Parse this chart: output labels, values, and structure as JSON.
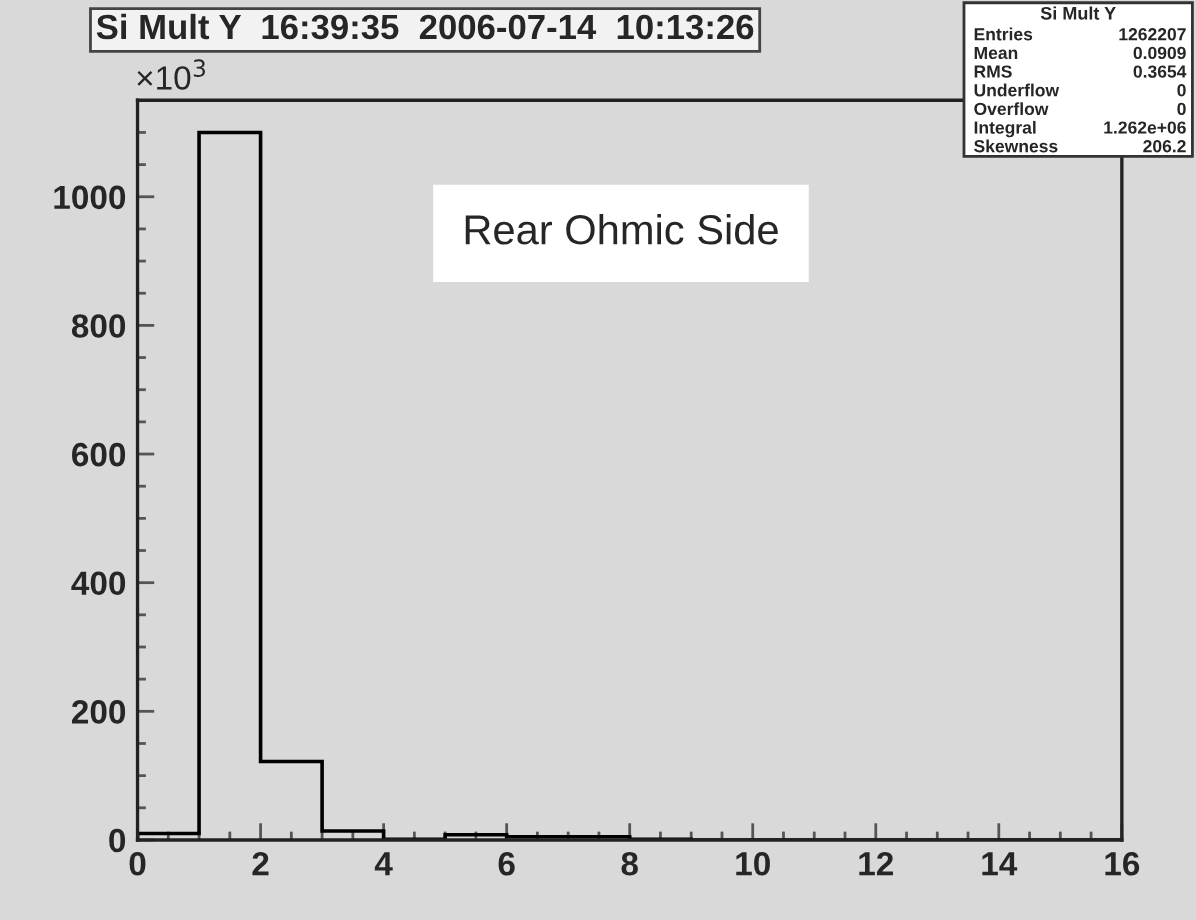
{
  "chart_data": {
    "type": "histogram",
    "title": "Si Mult Y  16:39:35  2006-07-14  10:13:26",
    "bins": [
      0,
      1,
      2,
      3,
      4,
      5,
      6,
      7,
      8,
      9,
      10,
      11,
      12,
      13,
      14,
      15,
      16
    ],
    "series": [
      {
        "color": "#000000",
        "values": [
          10,
          1100,
          122,
          14,
          1,
          8,
          5,
          5,
          1,
          0,
          0,
          0,
          0,
          0,
          0,
          0
        ]
      }
    ],
    "xlim": [
      0,
      16
    ],
    "ylim": [
      0,
      1150
    ],
    "xticks": [
      0,
      {
        "value": 0.5,
        "label": null
      },
      {
        "value": 1,
        "label": null
      },
      {
        "value": 1.5,
        "label": null
      },
      2,
      {
        "value": 2.5,
        "label": null
      },
      {
        "value": 3,
        "label": null
      },
      {
        "value": 3.5,
        "label": null
      },
      4,
      {
        "value": 4.5,
        "label": null
      },
      {
        "value": 5,
        "label": null
      },
      {
        "value": 5.5,
        "label": null
      },
      6,
      {
        "value": 6.5,
        "label": null
      },
      {
        "value": 7,
        "label": null
      },
      {
        "value": 7.5,
        "label": null
      },
      8,
      {
        "value": 8.5,
        "label": null
      },
      {
        "value": 9,
        "label": null
      },
      {
        "value": 9.5,
        "label": null
      },
      10,
      {
        "value": 10.5,
        "label": null
      },
      {
        "value": 11,
        "label": null
      },
      {
        "value": 11.5,
        "label": null
      },
      12,
      {
        "value": 12.5,
        "label": null
      },
      {
        "value": 13,
        "label": null
      },
      {
        "value": 13.5,
        "label": null
      },
      14,
      {
        "value": 14.5,
        "label": null
      },
      {
        "value": 15,
        "label": null
      },
      {
        "value": 15.5,
        "label": null
      },
      16
    ],
    "yticks": [
      0,
      {
        "value": 50,
        "label": null
      },
      {
        "value": 100,
        "label": null
      },
      {
        "value": 150,
        "label": null
      },
      200,
      {
        "value": 250,
        "label": null
      },
      {
        "value": 300,
        "label": null
      },
      {
        "value": 350,
        "label": null
      },
      400,
      {
        "value": 450,
        "label": null
      },
      {
        "value": 500,
        "label": null
      },
      {
        "value": 550,
        "label": null
      },
      600,
      {
        "value": 650,
        "label": null
      },
      {
        "value": 700,
        "label": null
      },
      {
        "value": 750,
        "label": null
      },
      800,
      {
        "value": 850,
        "label": null
      },
      {
        "value": 900,
        "label": null
      },
      {
        "value": 950,
        "label": null
      },
      1000,
      {
        "value": 1050,
        "label": null
      },
      {
        "value": 1100,
        "label": null
      }
    ],
    "grid": false,
    "legend": false,
    "annotations": [
      "×10$^{3}$",
      "Rear Ohmic Side",
      "Si Mult Y",
      "Entries",
      "1262207",
      "Mean",
      "0.0909",
      "RMS",
      "0.3654",
      "Underflow",
      "0",
      "Overflow",
      "0",
      "Integral",
      "1.262e+06",
      "Skewness",
      "206.2"
    ]
  }
}
